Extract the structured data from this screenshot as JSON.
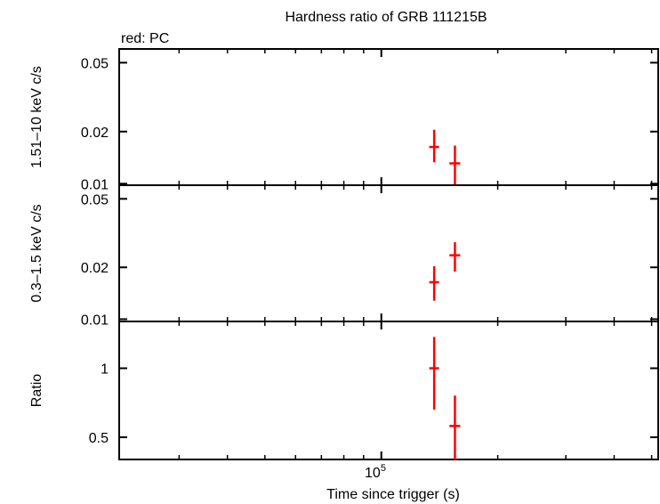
{
  "chart_data": {
    "title": "Hardness ratio of GRB 111215B",
    "legend": "red: PC",
    "xlabel": "Time since trigger (s)",
    "x_tick_label": {
      "base": "10",
      "exponent": "5"
    },
    "x_scale": "log",
    "xlim": [
      21000,
      520000
    ],
    "colors": {
      "data": "#ff0000",
      "axis": "#000000"
    },
    "panels": [
      {
        "type": "scatter",
        "ylabel": "1.51–10 keV c/s",
        "yscale": "log",
        "ylim": [
          0.0098,
          0.06
        ],
        "yticks": [
          {
            "value": 0.01,
            "label": "0.01"
          },
          {
            "value": 0.02,
            "label": "0.02"
          },
          {
            "value": 0.05,
            "label": "0.05"
          }
        ],
        "points": [
          {
            "x": 137000,
            "y": 0.0163,
            "yerr_low": 0.0133,
            "yerr_high": 0.0205,
            "xerr_low": 133000,
            "xerr_high": 141000
          },
          {
            "x": 155000,
            "y": 0.0131,
            "yerr_low": 0.0099,
            "yerr_high": 0.0166,
            "xerr_low": 150000,
            "xerr_high": 160000
          }
        ]
      },
      {
        "type": "scatter",
        "ylabel": "0.3–1.5 keV c/s",
        "yscale": "log",
        "ylim": [
          0.0097,
          0.06
        ],
        "yticks": [
          {
            "value": 0.01,
            "label": "0.01"
          },
          {
            "value": 0.02,
            "label": "0.02"
          },
          {
            "value": 0.05,
            "label": "0.05"
          }
        ],
        "points": [
          {
            "x": 137000,
            "y": 0.0164,
            "yerr_low": 0.0128,
            "yerr_high": 0.0203,
            "xerr_low": 133000,
            "xerr_high": 141000
          },
          {
            "x": 155000,
            "y": 0.0235,
            "yerr_low": 0.0189,
            "yerr_high": 0.028,
            "xerr_low": 150000,
            "xerr_high": 160000
          }
        ]
      },
      {
        "type": "scatter",
        "ylabel": "Ratio",
        "yscale": "log",
        "ylim": [
          0.4,
          1.6
        ],
        "yticks": [
          {
            "value": 0.5,
            "label": "0.5"
          },
          {
            "value": 1,
            "label": "1"
          }
        ],
        "points": [
          {
            "x": 137000,
            "y": 1.0,
            "yerr_low": 0.66,
            "yerr_high": 1.37,
            "xerr_low": 133000,
            "xerr_high": 141000
          },
          {
            "x": 155000,
            "y": 0.56,
            "yerr_low": 0.4,
            "yerr_high": 0.76,
            "xerr_low": 150000,
            "xerr_high": 160000
          }
        ]
      }
    ]
  }
}
